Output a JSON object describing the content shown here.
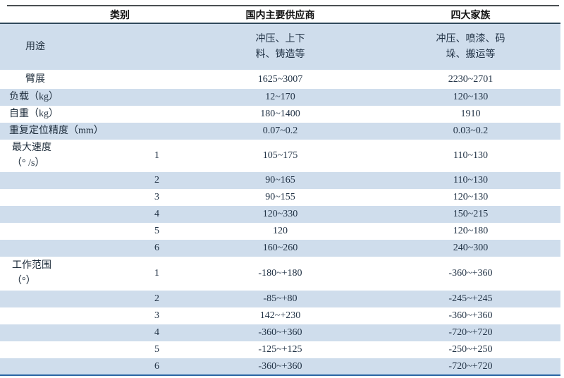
{
  "table": {
    "header": {
      "category": "类别",
      "domestic": "国内主要供应商",
      "big_four": "四大家族"
    },
    "rows": [
      {
        "label": "用途",
        "axis": "",
        "domestic": "冲压、上下\n料、铸造等",
        "big_four": "冲压、喷漆、码\n垛、搬运等"
      },
      {
        "label": "臂展",
        "axis": "",
        "domestic": "1625~3007",
        "big_four": "2230~2701"
      },
      {
        "label": "负载（kg）",
        "axis": "",
        "domestic": "12~170",
        "big_four": "120~130"
      },
      {
        "label": "自重（kg）",
        "axis": "",
        "domestic": "180~1400",
        "big_four": "1910"
      },
      {
        "label": "重复定位精度（mm）",
        "axis": "",
        "domestic": "0.07~0.2",
        "big_four": "0.03~0.2"
      },
      {
        "label": "最大速度\n（° /s）",
        "axis": "1",
        "domestic": "105~175",
        "big_four": "110~130"
      },
      {
        "label": "",
        "axis": "2",
        "domestic": "90~165",
        "big_four": "110~130"
      },
      {
        "label": "",
        "axis": "3",
        "domestic": "90~155",
        "big_four": "120~130"
      },
      {
        "label": "",
        "axis": "4",
        "domestic": "120~330",
        "big_four": "150~215"
      },
      {
        "label": "",
        "axis": "5",
        "domestic": "120",
        "big_four": "120~180"
      },
      {
        "label": "",
        "axis": "6",
        "domestic": "160~260",
        "big_four": "240~300"
      },
      {
        "label": "工作范围\n（°）",
        "axis": "1",
        "domestic": "-180~+180",
        "big_four": "-360~+360"
      },
      {
        "label": "",
        "axis": "2",
        "domestic": "-85~+80",
        "big_four": "-245~+245"
      },
      {
        "label": "",
        "axis": "3",
        "domestic": "142~+230",
        "big_four": "-360~+360"
      },
      {
        "label": "",
        "axis": "4",
        "domestic": "-360~+360",
        "big_four": "-720~+720"
      },
      {
        "label": "",
        "axis": "5",
        "domestic": "-125~+125",
        "big_four": "-250~+250"
      },
      {
        "label": "",
        "axis": "6",
        "domestic": "-360~+360",
        "big_four": "-720~+720"
      }
    ],
    "colors": {
      "row_alt_blue": "#cfddec",
      "header_rule": "#30495c",
      "bottom_rule": "#2b66a5",
      "top_rule": "#4a4f52"
    }
  }
}
